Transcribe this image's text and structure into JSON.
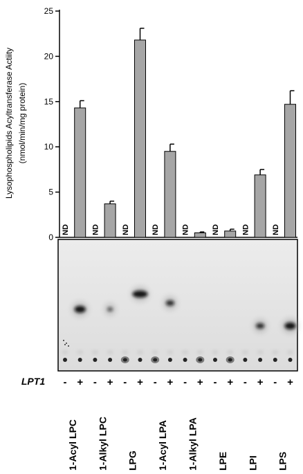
{
  "chart_data": {
    "type": "bar",
    "ylabel_line1": "Lysophospholipids Acyltransferase Actiity",
    "ylabel_line2": "(nmol/min/mg protein)",
    "ylim": [
      0,
      25
    ],
    "yticks": [
      0,
      5,
      10,
      15,
      20,
      25
    ],
    "categories": [
      "1-Acyl LPC",
      "1-Alkyl LPC",
      "LPG",
      "1-Acyl LPA",
      "1-Alkyl LPA",
      "LPE",
      "LPI",
      "LPS"
    ],
    "genotype_label": "LPT1",
    "lane_signs": [
      "-",
      "+",
      "-",
      "+",
      "-",
      "+",
      "-",
      "+",
      "-",
      "+",
      "-",
      "+",
      "-",
      "+",
      "-",
      "+"
    ],
    "nd_label": "ND",
    "series": [
      {
        "name": "-",
        "values": [
          null,
          null,
          null,
          null,
          null,
          null,
          null,
          null
        ],
        "labels": [
          "ND",
          "ND",
          "ND",
          "ND",
          "ND",
          "ND",
          "ND",
          "ND"
        ]
      },
      {
        "name": "+",
        "values": [
          14.3,
          3.7,
          21.8,
          9.5,
          0.5,
          0.7,
          6.9,
          14.7
        ],
        "errors": [
          0.8,
          0.3,
          1.3,
          0.8,
          0.1,
          0.2,
          0.6,
          1.5
        ]
      }
    ],
    "bar_color": "#a6a6a6",
    "grid": false,
    "legend": "none"
  },
  "tlc": {
    "background": "#e6e6e6",
    "product_spots_plus_lanes": [
      {
        "rf_position": "mid",
        "intensity": "strong"
      },
      {
        "rf_position": "mid",
        "intensity": "weak"
      },
      {
        "rf_position": "high",
        "intensity": "strong"
      },
      {
        "rf_position": "mid-high",
        "intensity": "medium"
      },
      {
        "rf_position": "none",
        "intensity": "none"
      },
      {
        "rf_position": "none",
        "intensity": "none"
      },
      {
        "rf_position": "mid-low",
        "intensity": "medium"
      },
      {
        "rf_position": "mid-low",
        "intensity": "strong"
      }
    ]
  }
}
